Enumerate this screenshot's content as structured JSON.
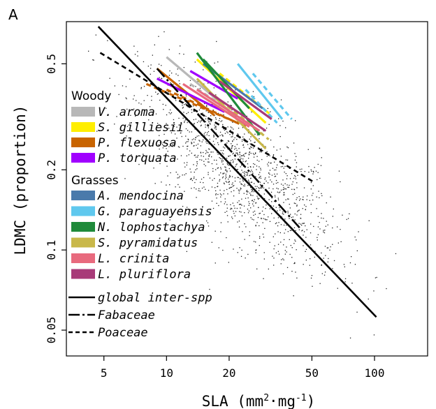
{
  "chart_data": {
    "type": "scatter",
    "panel_label": "A",
    "xlabel_main": "SLA (mm",
    "xlabel_sup1": "2",
    "xlabel_mid": "·mg",
    "xlabel_sup2": "-1",
    "xlabel_end": ")",
    "ylabel": "LDMC (proportion)",
    "x_scale": "log",
    "y_scale": "log",
    "xlim": [
      3.3,
      180
    ],
    "ylim": [
      0.04,
      0.72
    ],
    "x_ticks": [
      {
        "value": 5,
        "label": "5"
      },
      {
        "value": 10,
        "label": "10"
      },
      {
        "value": 20,
        "label": "20"
      },
      {
        "value": 50,
        "label": "50"
      },
      {
        "value": 100,
        "label": "100"
      }
    ],
    "y_ticks": [
      {
        "value": 0.05,
        "label": "0.05"
      },
      {
        "value": 0.1,
        "label": "0.1"
      },
      {
        "value": 0.2,
        "label": "0.2"
      },
      {
        "value": 0.5,
        "label": "0.5"
      }
    ],
    "background_points": {
      "description_free": true,
      "count": 1400,
      "center_x": 22,
      "center_y": 0.2
    },
    "fits": [
      {
        "name": "global inter-spp",
        "style": "solid",
        "color": "#000000",
        "x": [
          4.7,
          102
        ],
        "y": [
          0.69,
          0.056
        ]
      },
      {
        "name": "Fabaceae",
        "style": "dashdot",
        "color": "#000000",
        "x": [
          9.0,
          45
        ],
        "y": [
          0.48,
          0.118
        ]
      },
      {
        "name": "Poaceae",
        "style": "dashed",
        "color": "#000000",
        "x": [
          4.8,
          51
        ],
        "y": [
          0.55,
          0.18
        ]
      }
    ],
    "legend": {
      "woody_heading": "Woody",
      "grasses_heading": "Grasses",
      "species": [
        {
          "group": "woody",
          "name": "V. aroma",
          "color": "#b8b8b8"
        },
        {
          "group": "woody",
          "name": "S. gilliesii",
          "color": "#ffee00"
        },
        {
          "group": "woody",
          "name": "P. flexuosa",
          "color": "#c86400"
        },
        {
          "group": "woody",
          "name": "P. torquata",
          "color": "#a000ff"
        },
        {
          "group": "grass",
          "name": "A. mendocina",
          "color": "#4a7aab"
        },
        {
          "group": "grass",
          "name": "G. paraguayensis",
          "color": "#5fc8ee"
        },
        {
          "group": "grass",
          "name": "N. lophostachya",
          "color": "#1f8a3a"
        },
        {
          "group": "grass",
          "name": "S. pyramidatus",
          "color": "#c9b84a"
        },
        {
          "group": "grass",
          "name": "L. crinita",
          "color": "#e86a7e"
        },
        {
          "group": "grass",
          "name": "L. pluriflora",
          "color": "#a83a78"
        }
      ],
      "fit_entries": [
        {
          "name": "global inter-spp",
          "style": "solid"
        },
        {
          "name": "Fabaceae",
          "style": "dashdot"
        },
        {
          "name": "Poaceae",
          "style": "dashed"
        }
      ]
    },
    "species_lines": [
      {
        "species": "V. aroma",
        "color": "#b8b8b8",
        "style": "solid",
        "x": [
          10,
          18
        ],
        "y": [
          0.53,
          0.36
        ]
      },
      {
        "species": "V. aroma",
        "color": "#b8b8b8",
        "style": "dashed",
        "x": [
          13,
          28
        ],
        "y": [
          0.42,
          0.28
        ]
      },
      {
        "species": "S. gilliesii",
        "color": "#ffee00",
        "style": "solid",
        "x": [
          14,
          30
        ],
        "y": [
          0.52,
          0.3
        ]
      },
      {
        "species": "S. gilliesii",
        "color": "#ffee00",
        "style": "dashed",
        "x": [
          18,
          32
        ],
        "y": [
          0.46,
          0.32
        ]
      },
      {
        "species": "P. flexuosa",
        "color": "#c86400",
        "style": "solid",
        "x": [
          9,
          17
        ],
        "y": [
          0.48,
          0.32
        ]
      },
      {
        "species": "P. flexuosa",
        "color": "#c86400",
        "style": "dashed",
        "x": [
          8,
          22
        ],
        "y": [
          0.42,
          0.3
        ]
      },
      {
        "species": "P. flexuosa",
        "color": "#c86400",
        "style": "dashed",
        "x": [
          10,
          24
        ],
        "y": [
          0.4,
          0.29
        ]
      },
      {
        "species": "P. torquata",
        "color": "#a000ff",
        "style": "solid",
        "x": [
          9,
          19
        ],
        "y": [
          0.44,
          0.33
        ]
      },
      {
        "species": "P. torquata",
        "color": "#a000ff",
        "style": "solid",
        "x": [
          13,
          22
        ],
        "y": [
          0.47,
          0.37
        ]
      },
      {
        "species": "A. mendocina",
        "color": "#4a7aab",
        "style": "solid",
        "x": [
          15,
          29
        ],
        "y": [
          0.5,
          0.34
        ]
      },
      {
        "species": "G. paraguayensis",
        "color": "#5fc8ee",
        "style": "solid",
        "x": [
          22,
          36
        ],
        "y": [
          0.5,
          0.31
        ]
      },
      {
        "species": "G. paraguayensis",
        "color": "#5fc8ee",
        "style": "dashed",
        "x": [
          26,
          40
        ],
        "y": [
          0.46,
          0.31
        ]
      },
      {
        "species": "G. paraguayensis",
        "color": "#5fc8ee",
        "style": "dashed",
        "x": [
          24,
          34
        ],
        "y": [
          0.4,
          0.3
        ]
      },
      {
        "species": "N. lophostachya",
        "color": "#1f8a3a",
        "style": "solid",
        "x": [
          14,
          28
        ],
        "y": [
          0.55,
          0.27
        ]
      },
      {
        "species": "N. lophostachya",
        "color": "#1f8a3a",
        "style": "solid",
        "x": [
          15,
          25
        ],
        "y": [
          0.52,
          0.34
        ]
      },
      {
        "species": "S. pyramidatus",
        "color": "#c9b84a",
        "style": "solid",
        "x": [
          14,
          30
        ],
        "y": [
          0.44,
          0.24
        ]
      },
      {
        "species": "S. pyramidatus",
        "color": "#c9b84a",
        "style": "dashed",
        "x": [
          17,
          31
        ],
        "y": [
          0.38,
          0.26
        ]
      },
      {
        "species": "L. crinita",
        "color": "#e86a7e",
        "style": "solid",
        "x": [
          12,
          25
        ],
        "y": [
          0.42,
          0.29
        ]
      },
      {
        "species": "L. crinita",
        "color": "#e86a7e",
        "style": "solid",
        "x": [
          14,
          28
        ],
        "y": [
          0.4,
          0.28
        ]
      },
      {
        "species": "L. pluriflora",
        "color": "#a83a78",
        "style": "solid",
        "x": [
          16,
          30
        ],
        "y": [
          0.39,
          0.28
        ]
      },
      {
        "species": "L. pluriflora",
        "color": "#a83a78",
        "style": "solid",
        "x": [
          18,
          32
        ],
        "y": [
          0.43,
          0.31
        ]
      }
    ]
  }
}
